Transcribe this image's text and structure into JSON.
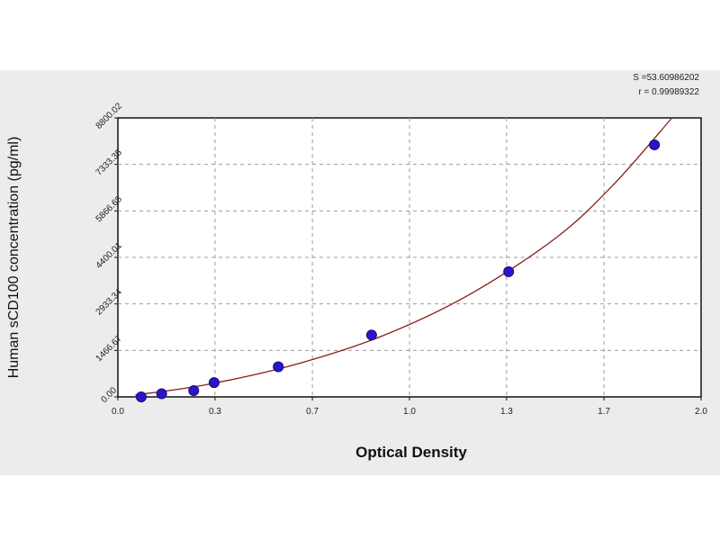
{
  "chart_data": {
    "type": "scatter",
    "title": "",
    "xlabel": "Optical Density",
    "ylabel": "Human sCD100 concentration (pg/ml)",
    "xlim": [
      0.0,
      2.0
    ],
    "ylim": [
      0.0,
      8800.02
    ],
    "x_ticks": [
      "0.0",
      "0.3",
      "0.7",
      "1.0",
      "1.3",
      "1.7",
      "2.0"
    ],
    "x_tick_values": [
      0.0,
      0.333,
      0.667,
      1.0,
      1.333,
      1.667,
      2.0
    ],
    "y_ticks": [
      "0.00",
      "1466.67",
      "2933.34",
      "4400.01",
      "5866.68",
      "7333.35",
      "8800.02"
    ],
    "y_tick_values": [
      0.0,
      1466.67,
      2933.34,
      4400.01,
      5866.68,
      7333.35,
      8800.02
    ],
    "grid": true,
    "series": [
      {
        "points": [
          {
            "x": 0.08,
            "y": 0
          },
          {
            "x": 0.15,
            "y": 100
          },
          {
            "x": 0.26,
            "y": 200
          },
          {
            "x": 0.33,
            "y": 450
          },
          {
            "x": 0.55,
            "y": 950
          },
          {
            "x": 0.87,
            "y": 1950
          },
          {
            "x": 1.34,
            "y": 3950
          },
          {
            "x": 1.84,
            "y": 7950
          }
        ]
      }
    ],
    "fit": {
      "color": "#8b1c1c",
      "points": [
        {
          "x": 0.06,
          "y": 60
        },
        {
          "x": 0.3,
          "y": 380
        },
        {
          "x": 0.6,
          "y": 1000
        },
        {
          "x": 0.9,
          "y": 1900
        },
        {
          "x": 1.2,
          "y": 3200
        },
        {
          "x": 1.5,
          "y": 5000
        },
        {
          "x": 1.7,
          "y": 6700
        },
        {
          "x": 1.9,
          "y": 8800
        }
      ]
    },
    "stats": [
      "S =53.60986202",
      "r = 0.99989322"
    ],
    "colors": {
      "marker": "#2a16c8",
      "marker_edge": "#1a0a7a",
      "grid": "#9a9a9a",
      "plot_bg": "#ffffff",
      "panel_bg": "#ececec"
    }
  }
}
